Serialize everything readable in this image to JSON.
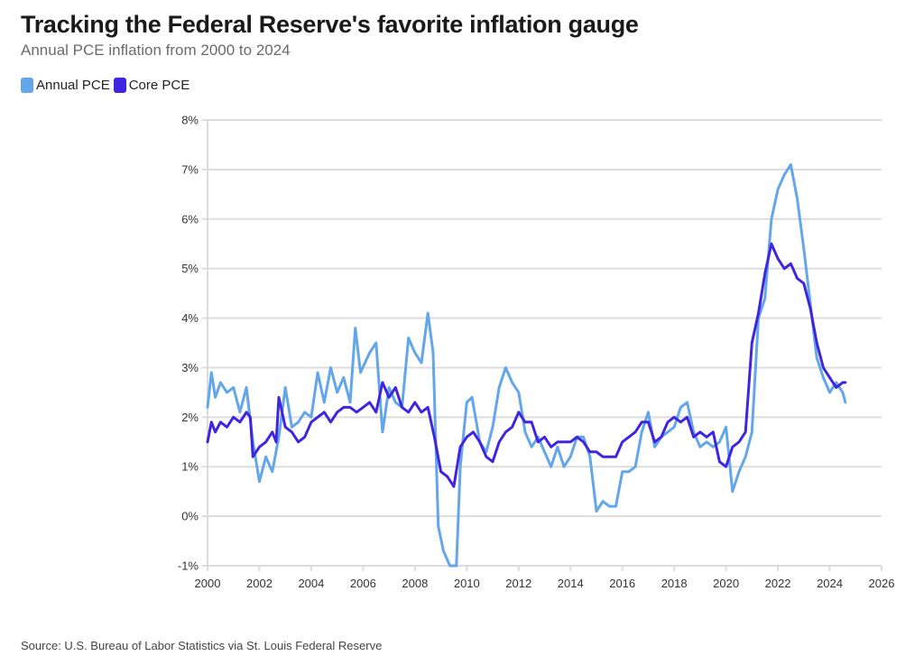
{
  "title": "Tracking the Federal Reserve's favorite inflation gauge",
  "subtitle": "Annual PCE inflation from 2000 to 2024",
  "source": "Source: U.S. Bureau of Labor Statistics via St. Louis Federal Reserve",
  "legend": [
    {
      "label": "Annual PCE",
      "color": "#63a6ea"
    },
    {
      "label": "Core PCE",
      "color": "#3f25e0"
    }
  ],
  "chart_data": {
    "type": "line",
    "title": "Tracking the Federal Reserve's favorite inflation gauge",
    "subtitle": "Annual PCE inflation from 2000 to 2024",
    "xlabel": "",
    "ylabel": "",
    "xlim": [
      2000,
      2026
    ],
    "ylim": [
      -1,
      8
    ],
    "xticks": [
      "2000",
      "2002",
      "2004",
      "2006",
      "2008",
      "2010",
      "2012",
      "2014",
      "2016",
      "2018",
      "2020",
      "2022",
      "2024",
      "2026"
    ],
    "yticks": [
      "-1%",
      "0%",
      "1%",
      "2%",
      "3%",
      "4%",
      "5%",
      "6%",
      "7%",
      "8%"
    ],
    "grid": true,
    "legend_position": "top-left",
    "series": [
      {
        "name": "Annual PCE",
        "color": "#63a6ea",
        "x": [
          2000.0,
          2000.15,
          2000.3,
          2000.5,
          2000.75,
          2001.0,
          2001.25,
          2001.5,
          2001.75,
          2002.0,
          2002.25,
          2002.5,
          2002.75,
          2003.0,
          2003.25,
          2003.5,
          2003.75,
          2004.0,
          2004.25,
          2004.5,
          2004.75,
          2005.0,
          2005.25,
          2005.5,
          2005.7,
          2005.9,
          2006.25,
          2006.5,
          2006.75,
          2007.0,
          2007.25,
          2007.5,
          2007.75,
          2008.0,
          2008.25,
          2008.5,
          2008.7,
          2008.9,
          2009.1,
          2009.35,
          2009.6,
          2009.75,
          2010.0,
          2010.2,
          2010.5,
          2010.75,
          2011.0,
          2011.25,
          2011.5,
          2011.75,
          2012.0,
          2012.25,
          2012.5,
          2012.75,
          2013.0,
          2013.25,
          2013.5,
          2013.75,
          2014.0,
          2014.25,
          2014.5,
          2014.75,
          2015.0,
          2015.25,
          2015.5,
          2015.75,
          2016.0,
          2016.25,
          2016.5,
          2016.75,
          2017.0,
          2017.25,
          2017.5,
          2017.75,
          2018.0,
          2018.25,
          2018.5,
          2018.75,
          2019.0,
          2019.25,
          2019.5,
          2019.75,
          2020.0,
          2020.25,
          2020.5,
          2020.75,
          2021.0,
          2021.25,
          2021.5,
          2021.75,
          2022.0,
          2022.25,
          2022.5,
          2022.75,
          2023.0,
          2023.25,
          2023.5,
          2023.75,
          2024.0,
          2024.25,
          2024.5,
          2024.6
        ],
        "values": [
          2.2,
          2.9,
          2.4,
          2.7,
          2.5,
          2.6,
          2.1,
          2.6,
          1.5,
          0.7,
          1.2,
          0.9,
          1.6,
          2.6,
          1.8,
          1.9,
          2.1,
          2.0,
          2.9,
          2.3,
          3.0,
          2.5,
          2.8,
          2.3,
          3.8,
          2.9,
          3.3,
          3.5,
          1.7,
          2.6,
          2.3,
          2.2,
          3.6,
          3.3,
          3.1,
          4.1,
          3.3,
          -0.2,
          -0.7,
          -1.3,
          -1.2,
          1.0,
          2.3,
          2.4,
          1.5,
          1.3,
          1.8,
          2.6,
          3.0,
          2.7,
          2.5,
          1.7,
          1.4,
          1.6,
          1.3,
          1.0,
          1.4,
          1.0,
          1.2,
          1.6,
          1.6,
          1.2,
          0.1,
          0.3,
          0.2,
          0.2,
          0.9,
          0.9,
          1.0,
          1.7,
          2.1,
          1.4,
          1.6,
          1.7,
          1.8,
          2.2,
          2.3,
          1.7,
          1.4,
          1.5,
          1.4,
          1.5,
          1.8,
          0.5,
          0.9,
          1.2,
          1.7,
          4.0,
          4.4,
          6.0,
          6.6,
          6.9,
          7.1,
          6.4,
          5.4,
          4.3,
          3.2,
          2.8,
          2.5,
          2.7,
          2.5,
          2.3
        ]
      },
      {
        "name": "Core PCE",
        "color": "#3f25e0",
        "x": [
          2000.0,
          2000.15,
          2000.3,
          2000.5,
          2000.75,
          2001.0,
          2001.25,
          2001.5,
          2001.65,
          2001.75,
          2002.0,
          2002.25,
          2002.5,
          2002.65,
          2002.75,
          2003.0,
          2003.25,
          2003.5,
          2003.75,
          2004.0,
          2004.25,
          2004.5,
          2004.75,
          2005.0,
          2005.25,
          2005.5,
          2005.75,
          2006.0,
          2006.25,
          2006.5,
          2006.75,
          2007.0,
          2007.25,
          2007.5,
          2007.75,
          2008.0,
          2008.25,
          2008.5,
          2008.75,
          2009.0,
          2009.25,
          2009.5,
          2009.75,
          2010.0,
          2010.25,
          2010.5,
          2010.75,
          2011.0,
          2011.25,
          2011.5,
          2011.75,
          2012.0,
          2012.25,
          2012.5,
          2012.75,
          2013.0,
          2013.25,
          2013.5,
          2013.75,
          2014.0,
          2014.25,
          2014.5,
          2014.75,
          2015.0,
          2015.25,
          2015.5,
          2015.75,
          2016.0,
          2016.25,
          2016.5,
          2016.75,
          2017.0,
          2017.25,
          2017.5,
          2017.75,
          2018.0,
          2018.25,
          2018.5,
          2018.75,
          2019.0,
          2019.25,
          2019.5,
          2019.75,
          2020.0,
          2020.25,
          2020.5,
          2020.75,
          2021.0,
          2021.25,
          2021.5,
          2021.75,
          2022.0,
          2022.25,
          2022.5,
          2022.75,
          2023.0,
          2023.25,
          2023.5,
          2023.75,
          2024.0,
          2024.25,
          2024.5,
          2024.6
        ],
        "values": [
          1.5,
          1.9,
          1.7,
          1.9,
          1.8,
          2.0,
          1.9,
          2.1,
          2.0,
          1.2,
          1.4,
          1.5,
          1.7,
          1.5,
          2.4,
          1.8,
          1.7,
          1.5,
          1.6,
          1.9,
          2.0,
          2.1,
          1.9,
          2.1,
          2.2,
          2.2,
          2.1,
          2.2,
          2.3,
          2.1,
          2.7,
          2.4,
          2.6,
          2.2,
          2.1,
          2.3,
          2.1,
          2.2,
          1.6,
          0.9,
          0.8,
          0.6,
          1.4,
          1.6,
          1.7,
          1.5,
          1.2,
          1.1,
          1.5,
          1.7,
          1.8,
          2.1,
          1.9,
          1.9,
          1.5,
          1.6,
          1.4,
          1.5,
          1.5,
          1.5,
          1.6,
          1.5,
          1.3,
          1.3,
          1.2,
          1.2,
          1.2,
          1.5,
          1.6,
          1.7,
          1.9,
          1.9,
          1.5,
          1.6,
          1.9,
          2.0,
          1.9,
          2.0,
          1.6,
          1.7,
          1.6,
          1.7,
          1.1,
          1.0,
          1.4,
          1.5,
          1.7,
          3.5,
          4.1,
          4.9,
          5.5,
          5.2,
          5.0,
          5.1,
          4.8,
          4.7,
          4.2,
          3.5,
          3.0,
          2.8,
          2.6,
          2.7,
          2.7
        ]
      }
    ]
  }
}
